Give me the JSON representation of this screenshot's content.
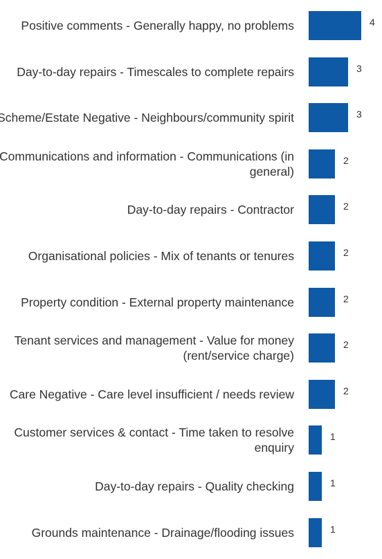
{
  "chart_data": {
    "type": "bar",
    "orientation": "horizontal",
    "color": "#0f5aa6",
    "categories": [
      "Positive comments - Generally happy, no problems",
      "Day-to-day repairs - Timescales to complete repairs",
      "Scheme/Estate Negative - Neighbours/community spirit",
      "Communications and information - Communications (in general)",
      "Day-to-day repairs - Contractor",
      "Organisational policies - Mix of tenants or tenures",
      "Property condition - External property maintenance",
      "Tenant services and management - Value for money (rent/service charge)",
      "Care Negative - Care level insufficient / needs review",
      "Customer services & contact - Time taken to resolve enquiry",
      "Day-to-day repairs - Quality checking",
      "Grounds maintenance - Drainage/flooding issues"
    ],
    "values": [
      4,
      3,
      3,
      2,
      2,
      2,
      2,
      2,
      2,
      1,
      1,
      1
    ]
  }
}
